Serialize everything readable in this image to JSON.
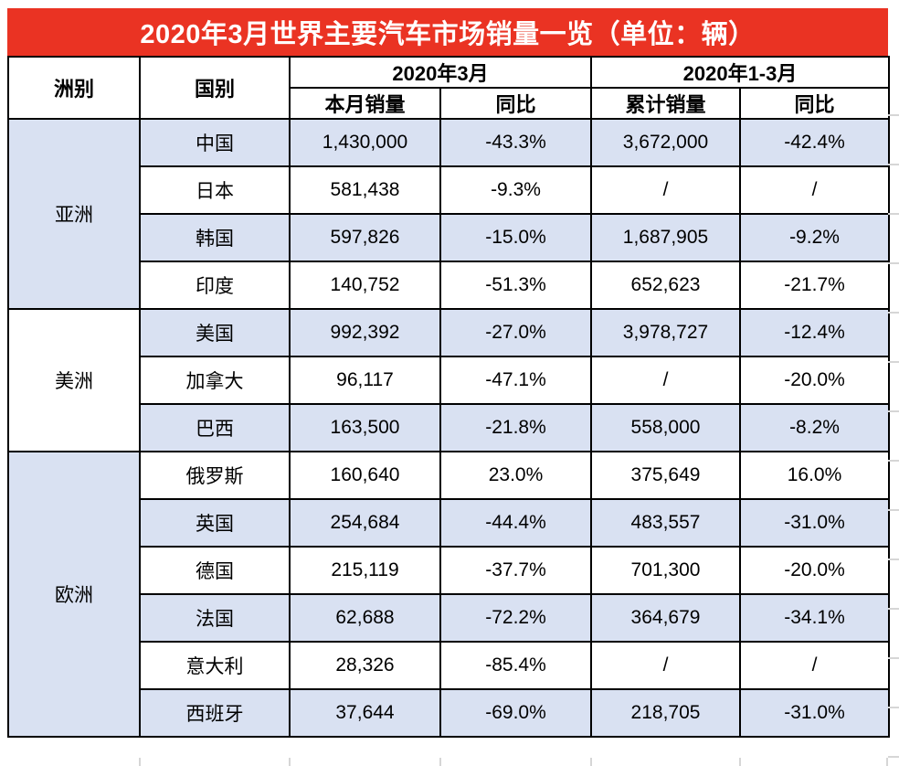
{
  "title": "2020年3月世界主要汽车市场销量一览（单位：辆）",
  "colors": {
    "title_bg": "#EA3323",
    "title_text": "#FFFFFF",
    "shade": "#D9E1F2",
    "border": "#000000",
    "gridline": "#D6D6D6"
  },
  "header": {
    "continent": "洲别",
    "country": "国别",
    "group_march": "2020年3月",
    "group_q1": "2020年1-3月",
    "monthly_sales": "本月销量",
    "monthly_yoy": "同比",
    "cumulative_sales": "累计销量",
    "cumulative_yoy": "同比"
  },
  "chart_data": {
    "type": "table",
    "title": "2020年3月世界主要汽车市场销量一览（单位：辆）",
    "unit": "辆",
    "columns": [
      "洲别",
      "国别",
      "2020年3月 本月销量",
      "2020年3月 同比",
      "2020年1-3月 累计销量",
      "2020年1-3月 同比"
    ],
    "groups": [
      {
        "continent": "亚洲",
        "shaded": true,
        "rows": [
          {
            "country": "中国",
            "monthly": "1,430,000",
            "yoy": "-43.3%",
            "cumulative": "3,672,000",
            "cum_yoy": "-42.4%",
            "shaded": true
          },
          {
            "country": "日本",
            "monthly": "581,438",
            "yoy": "-9.3%",
            "cumulative": "/",
            "cum_yoy": "/",
            "shaded": false
          },
          {
            "country": "韩国",
            "monthly": "597,826",
            "yoy": "-15.0%",
            "cumulative": "1,687,905",
            "cum_yoy": "-9.2%",
            "shaded": true
          },
          {
            "country": "印度",
            "monthly": "140,752",
            "yoy": "-51.3%",
            "cumulative": "652,623",
            "cum_yoy": "-21.7%",
            "shaded": false
          }
        ]
      },
      {
        "continent": "美洲",
        "shaded": false,
        "rows": [
          {
            "country": "美国",
            "monthly": "992,392",
            "yoy": "-27.0%",
            "cumulative": "3,978,727",
            "cum_yoy": "-12.4%",
            "shaded": true
          },
          {
            "country": "加拿大",
            "monthly": "96,117",
            "yoy": "-47.1%",
            "cumulative": "/",
            "cum_yoy": "-20.0%",
            "shaded": false
          },
          {
            "country": "巴西",
            "monthly": "163,500",
            "yoy": "-21.8%",
            "cumulative": "558,000",
            "cum_yoy": "-8.2%",
            "shaded": true
          }
        ]
      },
      {
        "continent": "欧洲",
        "shaded": true,
        "rows": [
          {
            "country": "俄罗斯",
            "monthly": "160,640",
            "yoy": "23.0%",
            "cumulative": "375,649",
            "cum_yoy": "16.0%",
            "shaded": false
          },
          {
            "country": "英国",
            "monthly": "254,684",
            "yoy": "-44.4%",
            "cumulative": "483,557",
            "cum_yoy": "-31.0%",
            "shaded": true
          },
          {
            "country": "德国",
            "monthly": "215,119",
            "yoy": "-37.7%",
            "cumulative": "701,300",
            "cum_yoy": "-20.0%",
            "shaded": false
          },
          {
            "country": "法国",
            "monthly": "62,688",
            "yoy": "-72.2%",
            "cumulative": "364,679",
            "cum_yoy": "-34.1%",
            "shaded": true
          },
          {
            "country": "意大利",
            "monthly": "28,326",
            "yoy": "-85.4%",
            "cumulative": "/",
            "cum_yoy": "/",
            "shaded": false
          },
          {
            "country": "西班牙",
            "monthly": "37,644",
            "yoy": "-69.0%",
            "cumulative": "218,705",
            "cum_yoy": "-31.0%",
            "shaded": true
          }
        ]
      }
    ]
  }
}
